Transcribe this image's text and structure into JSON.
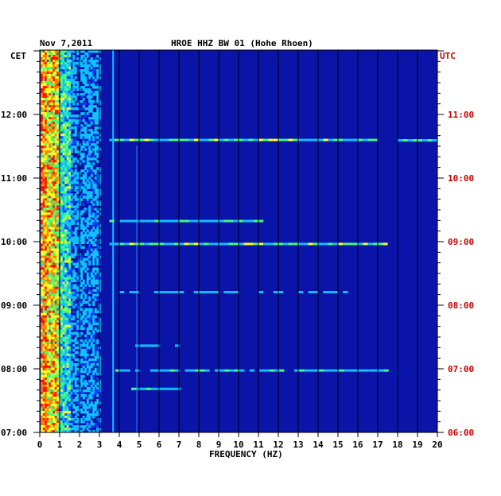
{
  "header": {
    "date": "Nov 7,2011",
    "station": "HROE HHZ BW 01 (Hohe Rhoen)",
    "left_zone": "CET",
    "right_zone": "UTC"
  },
  "chart_data": {
    "type": "heatmap",
    "title": "HROE HHZ BW 01 (Hohe Rhoen)",
    "date": "Nov 7,2011",
    "xlabel": "FREQUENCY (HZ)",
    "xlim": [
      0,
      20
    ],
    "x_ticks": [
      "0",
      "1",
      "2",
      "3",
      "4",
      "5",
      "6",
      "7",
      "8",
      "9",
      "10",
      "11",
      "12",
      "13",
      "14",
      "15",
      "16",
      "17",
      "18",
      "19",
      "20"
    ],
    "y_left_label": "CET",
    "y_left_ticks": [
      "07:00",
      "08:00",
      "09:00",
      "10:00",
      "11:00",
      "12:00"
    ],
    "y_right_label": "UTC",
    "y_right_ticks": [
      "06:00",
      "07:00",
      "08:00",
      "09:00",
      "10:00",
      "11:00"
    ],
    "colors": {
      "background": "#0a14a8",
      "strong": "#ff2000",
      "right_axis": "#cc0000"
    },
    "energy_bands_hz": [
      {
        "from": 0.1,
        "to": 0.9,
        "level": "high"
      },
      {
        "from": 0.9,
        "to": 3.0,
        "level": "medium"
      },
      {
        "from": 3.6,
        "to": 3.8,
        "level": "line"
      },
      {
        "from": 4.8,
        "to": 4.9,
        "level": "line"
      }
    ]
  }
}
